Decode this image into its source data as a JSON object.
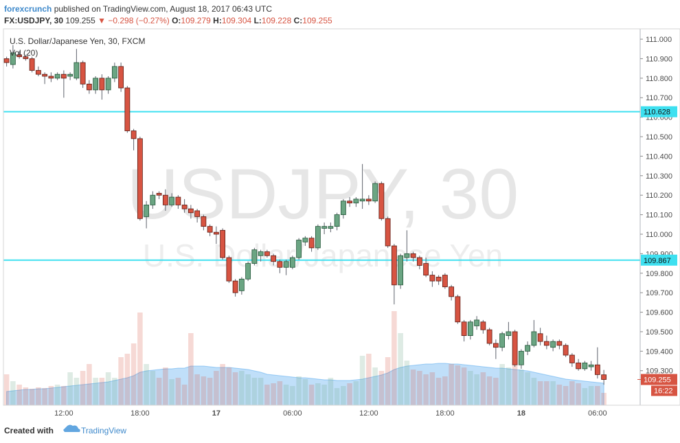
{
  "header": {
    "author": "forexcrunch",
    "published": "published on TradingView.com, August 18, 2017 06:43 UTC",
    "symbol": "FX:USDJPY, 30",
    "price": "109.255",
    "change": "▼ −0.298 (−0.27%)",
    "ohlc": [
      {
        "key": "O:",
        "value": "109.279"
      },
      {
        "key": "H:",
        "value": "109.304"
      },
      {
        "key": "L:",
        "value": "109.228"
      },
      {
        "key": "C:",
        "value": "109.255"
      }
    ]
  },
  "chart_data": {
    "type": "candlestick",
    "watermark": {
      "symbol": "USDJPY, 30",
      "description": "U.S. Dollar/Japanese Yen"
    },
    "categories": [
      null,
      null,
      null,
      null,
      null,
      null,
      null,
      null,
      null,
      "12:00",
      null,
      null,
      null,
      null,
      null,
      null,
      null,
      null,
      null,
      null,
      null,
      "18:00",
      null,
      null,
      null,
      null,
      null,
      null,
      null,
      null,
      null,
      null,
      null,
      "17",
      null,
      null,
      null,
      null,
      null,
      null,
      null,
      null,
      null,
      null,
      null,
      "06:00",
      null,
      null,
      null,
      null,
      null,
      null,
      null,
      null,
      null,
      null,
      null,
      "12:00",
      null,
      null,
      null,
      null,
      null,
      null,
      null,
      null,
      null,
      null,
      null,
      "18:00",
      null,
      null,
      null,
      null,
      null,
      null,
      null,
      null,
      null,
      null,
      null,
      "18",
      null,
      null,
      null,
      null,
      null,
      null,
      null,
      null,
      null,
      null,
      null,
      "06:00",
      null
    ],
    "series": [
      {
        "name": "U.S. Dollar/Japanese Yen, 30, FXCM",
        "up_color": "#6ba583",
        "down_color": "#d75442",
        "open": [
          110.9,
          110.87,
          110.92,
          110.91,
          110.9,
          110.84,
          110.82,
          110.81,
          110.8,
          110.82,
          110.81,
          110.8,
          110.88,
          110.77,
          110.74,
          110.8,
          110.74,
          110.8,
          110.86,
          110.75,
          110.53,
          110.49,
          110.09,
          110.15,
          110.21,
          110.2,
          110.15,
          110.19,
          110.15,
          110.13,
          110.12,
          110.09,
          110.04,
          110.01,
          110.02,
          109.88,
          109.76,
          109.71,
          109.77,
          109.85,
          109.89,
          109.91,
          109.89,
          109.86,
          109.83,
          109.83,
          109.88,
          109.96,
          109.98,
          109.93,
          110.03,
          110.03,
          110.04,
          110.1,
          110.17,
          110.16,
          110.17,
          110.18,
          110.17,
          110.26,
          110.08,
          109.94,
          109.74,
          109.88,
          109.9,
          109.88,
          109.85,
          109.79,
          109.78,
          109.79,
          109.73,
          109.68,
          109.55,
          109.48,
          109.53,
          109.55,
          109.51,
          109.44,
          109.42,
          109.48,
          109.5,
          109.33,
          109.4,
          109.43,
          109.49,
          109.45,
          109.42,
          109.45,
          109.43,
          109.38,
          109.34,
          109.31,
          109.32,
          109.33,
          109.279
        ],
        "high": [
          110.91,
          110.97,
          110.94,
          110.92,
          110.91,
          110.86,
          110.83,
          110.83,
          110.83,
          110.84,
          110.83,
          110.95,
          110.89,
          110.79,
          110.81,
          110.82,
          110.81,
          110.88,
          110.88,
          110.76,
          110.54,
          110.5,
          110.17,
          110.22,
          110.22,
          110.23,
          110.21,
          110.2,
          110.18,
          110.15,
          110.13,
          110.1,
          110.05,
          110.04,
          110.03,
          109.89,
          109.77,
          109.78,
          109.86,
          109.93,
          109.92,
          109.92,
          109.9,
          109.87,
          109.87,
          109.89,
          109.98,
          109.99,
          109.99,
          110.05,
          110.06,
          110.06,
          110.11,
          110.18,
          110.19,
          110.19,
          110.36,
          110.2,
          110.27,
          110.27,
          110.09,
          109.95,
          109.9,
          110.02,
          109.91,
          109.89,
          109.88,
          109.81,
          109.79,
          109.8,
          109.74,
          109.69,
          109.56,
          109.56,
          109.58,
          109.56,
          109.52,
          109.46,
          109.5,
          109.55,
          109.51,
          109.41,
          109.45,
          109.56,
          109.52,
          109.48,
          109.46,
          109.46,
          109.44,
          109.39,
          109.36,
          109.35,
          109.35,
          109.42,
          109.304
        ],
        "low": [
          110.86,
          110.85,
          110.9,
          110.89,
          110.83,
          110.81,
          110.77,
          110.78,
          110.79,
          110.7,
          110.79,
          110.79,
          110.75,
          110.72,
          110.72,
          110.69,
          110.72,
          110.78,
          110.73,
          110.52,
          110.43,
          110.07,
          110.03,
          110.13,
          110.18,
          110.12,
          110.14,
          110.13,
          110.11,
          110.08,
          110.06,
          110.02,
          109.99,
          109.95,
          109.87,
          109.75,
          109.68,
          109.69,
          109.76,
          109.84,
          109.86,
          109.88,
          109.84,
          109.8,
          109.79,
          109.82,
          109.87,
          109.94,
          109.91,
          109.92,
          110.0,
          110.01,
          110.02,
          110.08,
          110.14,
          110.14,
          110.13,
          110.15,
          110.16,
          110.07,
          109.93,
          109.64,
          109.72,
          109.86,
          109.86,
          109.82,
          109.78,
          109.73,
          109.74,
          109.72,
          109.66,
          109.54,
          109.45,
          109.46,
          109.51,
          109.49,
          109.43,
          109.36,
          109.4,
          109.46,
          109.32,
          109.31,
          109.38,
          109.42,
          109.43,
          109.41,
          109.4,
          109.41,
          109.37,
          109.32,
          109.3,
          109.3,
          109.3,
          109.26,
          109.228
        ],
        "close": [
          110.88,
          110.93,
          110.91,
          110.9,
          110.84,
          110.82,
          110.81,
          110.8,
          110.82,
          110.8,
          110.82,
          110.88,
          110.77,
          110.74,
          110.8,
          110.74,
          110.8,
          110.86,
          110.75,
          110.53,
          110.49,
          110.08,
          110.15,
          110.2,
          110.2,
          110.15,
          110.19,
          110.15,
          110.13,
          110.11,
          110.09,
          110.04,
          110.01,
          110.0,
          109.88,
          109.76,
          109.7,
          109.77,
          109.85,
          109.92,
          109.91,
          109.89,
          109.86,
          109.83,
          109.86,
          109.88,
          109.97,
          109.98,
          109.93,
          110.04,
          110.04,
          110.04,
          110.1,
          110.17,
          110.16,
          110.18,
          110.18,
          110.17,
          110.26,
          110.08,
          109.94,
          109.74,
          109.89,
          109.9,
          109.88,
          109.84,
          109.79,
          109.76,
          109.76,
          109.73,
          109.68,
          109.55,
          109.48,
          109.55,
          109.56,
          109.51,
          109.44,
          109.42,
          109.49,
          109.5,
          109.33,
          109.4,
          109.43,
          109.5,
          109.45,
          109.43,
          109.45,
          109.43,
          109.38,
          109.34,
          109.31,
          109.34,
          109.33,
          109.28,
          109.255
        ]
      }
    ],
    "volume": {
      "name": "Vol (20)",
      "ma_color": "#4aa3ee",
      "values": [
        45,
        35,
        30,
        26,
        24,
        26,
        25,
        28,
        30,
        28,
        48,
        40,
        50,
        60,
        40,
        40,
        48,
        40,
        70,
        75,
        90,
        135,
        60,
        50,
        40,
        55,
        38,
        40,
        30,
        105,
        45,
        42,
        40,
        50,
        60,
        55,
        48,
        50,
        45,
        40,
        40,
        30,
        32,
        35,
        30,
        28,
        42,
        38,
        30,
        32,
        30,
        40,
        25,
        28,
        32,
        35,
        72,
        75,
        55,
        50,
        70,
        137,
        105,
        65,
        52,
        50,
        45,
        48,
        40,
        42,
        60,
        58,
        55,
        50,
        45,
        48,
        42,
        40,
        60,
        55,
        58,
        52,
        48,
        40,
        35,
        35,
        35,
        30,
        28,
        35,
        32,
        25,
        28,
        28,
        18
      ],
      "ma": [
        20,
        21,
        22,
        23,
        23,
        24,
        24,
        25,
        26,
        27,
        28,
        29,
        30,
        31,
        32,
        33,
        34,
        36,
        38,
        40,
        43,
        48,
        50,
        51,
        52,
        53,
        53,
        54,
        54,
        57,
        57,
        57,
        56,
        55,
        55,
        55,
        54,
        53,
        52,
        50,
        48,
        45,
        44,
        43,
        42,
        41,
        40,
        40,
        39,
        38,
        37,
        37,
        36,
        36,
        36,
        37,
        38,
        40,
        42,
        44,
        47,
        52,
        55,
        57,
        58,
        59,
        60,
        60,
        61,
        61,
        60,
        60,
        59,
        58,
        57,
        56,
        55,
        54,
        54,
        53,
        52,
        51,
        50,
        48,
        46,
        44,
        42,
        40,
        38,
        37,
        36,
        35,
        34,
        33,
        32
      ]
    },
    "ylim": [
      109.123,
      111.053
    ],
    "yticks": [
      {
        "value": 109.3,
        "label": "109.300"
      },
      {
        "value": 109.4,
        "label": "109.400"
      },
      {
        "value": 109.5,
        "label": "109.500"
      },
      {
        "value": 109.6,
        "label": "109.600"
      },
      {
        "value": 109.7,
        "label": "109.700"
      },
      {
        "value": 109.8,
        "label": "109.800"
      },
      {
        "value": 109.9,
        "label": "109.900"
      },
      {
        "value": 110,
        "label": "110.000"
      },
      {
        "value": 110.1,
        "label": "110.100"
      },
      {
        "value": 110.2,
        "label": "110.200"
      },
      {
        "value": 110.3,
        "label": "110.300"
      },
      {
        "value": 110.4,
        "label": "110.400"
      },
      {
        "value": 110.5,
        "label": "110.500"
      },
      {
        "value": 110.6,
        "label": "110.600"
      },
      {
        "value": 110.7,
        "label": "110.700"
      },
      {
        "value": 110.8,
        "label": "110.800"
      },
      {
        "value": 110.9,
        "label": "110.900"
      },
      {
        "value": 111,
        "label": "111.000"
      }
    ],
    "hlines": [
      {
        "value": 110.628,
        "label": "110.628",
        "color": "#3ee0f0"
      },
      {
        "value": 109.867,
        "label": "109.867",
        "color": "#3ee0f0"
      }
    ],
    "last_price": {
      "value": 109.255,
      "label": "109.255",
      "countdown": "16:22",
      "color": "#d75442"
    },
    "grid": false
  },
  "footer": {
    "created_with": "Created with",
    "brand": "TradingView"
  }
}
